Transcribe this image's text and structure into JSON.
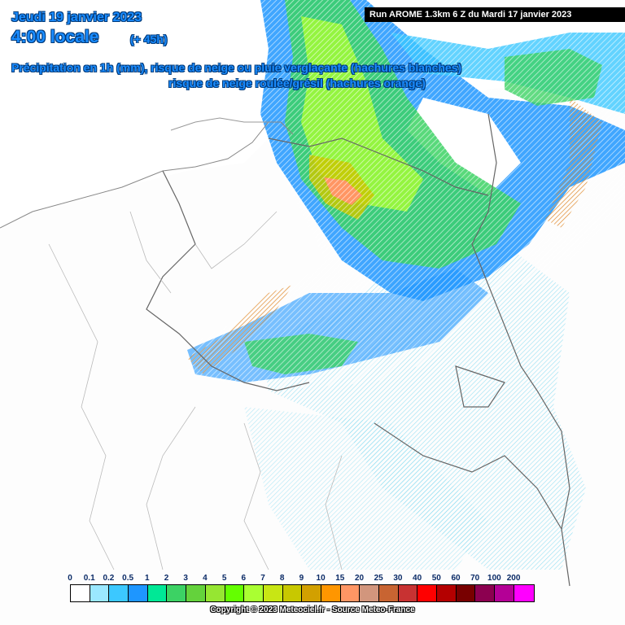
{
  "header": {
    "date": "Jeudi 19 janvier 2023",
    "time": "4:00 locale",
    "lead": "(+ 45h)",
    "legend_line1": "Précipitation en 1h (mm), risque de neige ou pluie verglaçante (hachures blanches)",
    "legend_line2": "risque de neige roulée/grésil (hachures orange)",
    "run": "Run AROME 1.3km 6 Z du Mardi 17 janvier 2023"
  },
  "scale": {
    "labels": [
      "0",
      "0.1",
      "0.2",
      "0.5",
      "1",
      "2",
      "3",
      "4",
      "5",
      "6",
      "7",
      "8",
      "9",
      "10",
      "15",
      "20",
      "25",
      "30",
      "40",
      "50",
      "60",
      "70",
      "100",
      "200"
    ],
    "colors": [
      "#ffffff",
      "#9be8ff",
      "#3cc8ff",
      "#1e96ff",
      "#00e896",
      "#3cd264",
      "#64d23c",
      "#96e632",
      "#64ff00",
      "#aaff32",
      "#c8e614",
      "#c8c800",
      "#d2a000",
      "#ff9600",
      "#ff9664",
      "#d2967d",
      "#c86432",
      "#c83232",
      "#ff0000",
      "#b40000",
      "#780000",
      "#8c0050",
      "#b40096",
      "#ff00ff"
    ]
  },
  "copyright": "Copyright © 2023 Meteociel.fr - Source Meteo-France"
}
